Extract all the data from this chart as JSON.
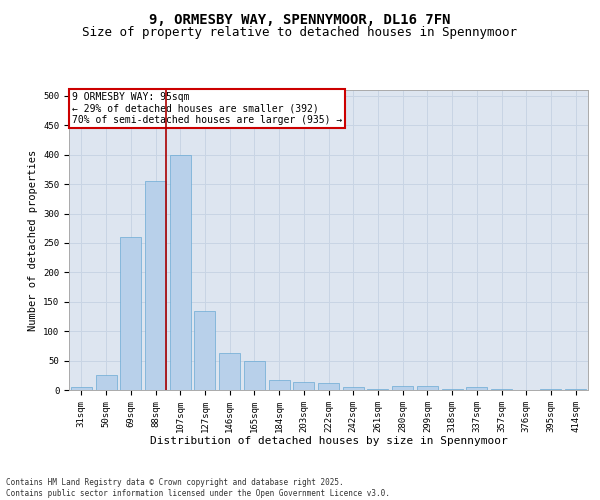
{
  "title1": "9, ORMESBY WAY, SPENNYMOOR, DL16 7FN",
  "title2": "Size of property relative to detached houses in Spennymoor",
  "xlabel": "Distribution of detached houses by size in Spennymoor",
  "ylabel": "Number of detached properties",
  "categories": [
    "31sqm",
    "50sqm",
    "69sqm",
    "88sqm",
    "107sqm",
    "127sqm",
    "146sqm",
    "165sqm",
    "184sqm",
    "203sqm",
    "222sqm",
    "242sqm",
    "261sqm",
    "280sqm",
    "299sqm",
    "318sqm",
    "337sqm",
    "357sqm",
    "376sqm",
    "395sqm",
    "414sqm"
  ],
  "values": [
    5,
    25,
    260,
    355,
    400,
    135,
    63,
    50,
    17,
    13,
    12,
    5,
    1,
    7,
    7,
    1,
    5,
    1,
    0,
    1,
    2
  ],
  "bar_color": "#b8d0ea",
  "bar_edge_color": "#6aaad4",
  "bar_width": 0.85,
  "grid_color": "#c8d4e4",
  "bg_color": "#dde5f0",
  "vline_color": "#aa0000",
  "annotation_text": "9 ORMESBY WAY: 95sqm\n← 29% of detached houses are smaller (392)\n70% of semi-detached houses are larger (935) →",
  "annotation_box_color": "#ffffff",
  "annotation_box_edge": "#cc0000",
  "ylim": [
    0,
    510
  ],
  "yticks": [
    0,
    50,
    100,
    150,
    200,
    250,
    300,
    350,
    400,
    450,
    500
  ],
  "footer_text": "Contains HM Land Registry data © Crown copyright and database right 2025.\nContains public sector information licensed under the Open Government Licence v3.0.",
  "title1_fontsize": 10,
  "title2_fontsize": 9,
  "xlabel_fontsize": 8,
  "ylabel_fontsize": 7.5,
  "tick_fontsize": 6.5,
  "annotation_fontsize": 7,
  "footer_fontsize": 5.5
}
